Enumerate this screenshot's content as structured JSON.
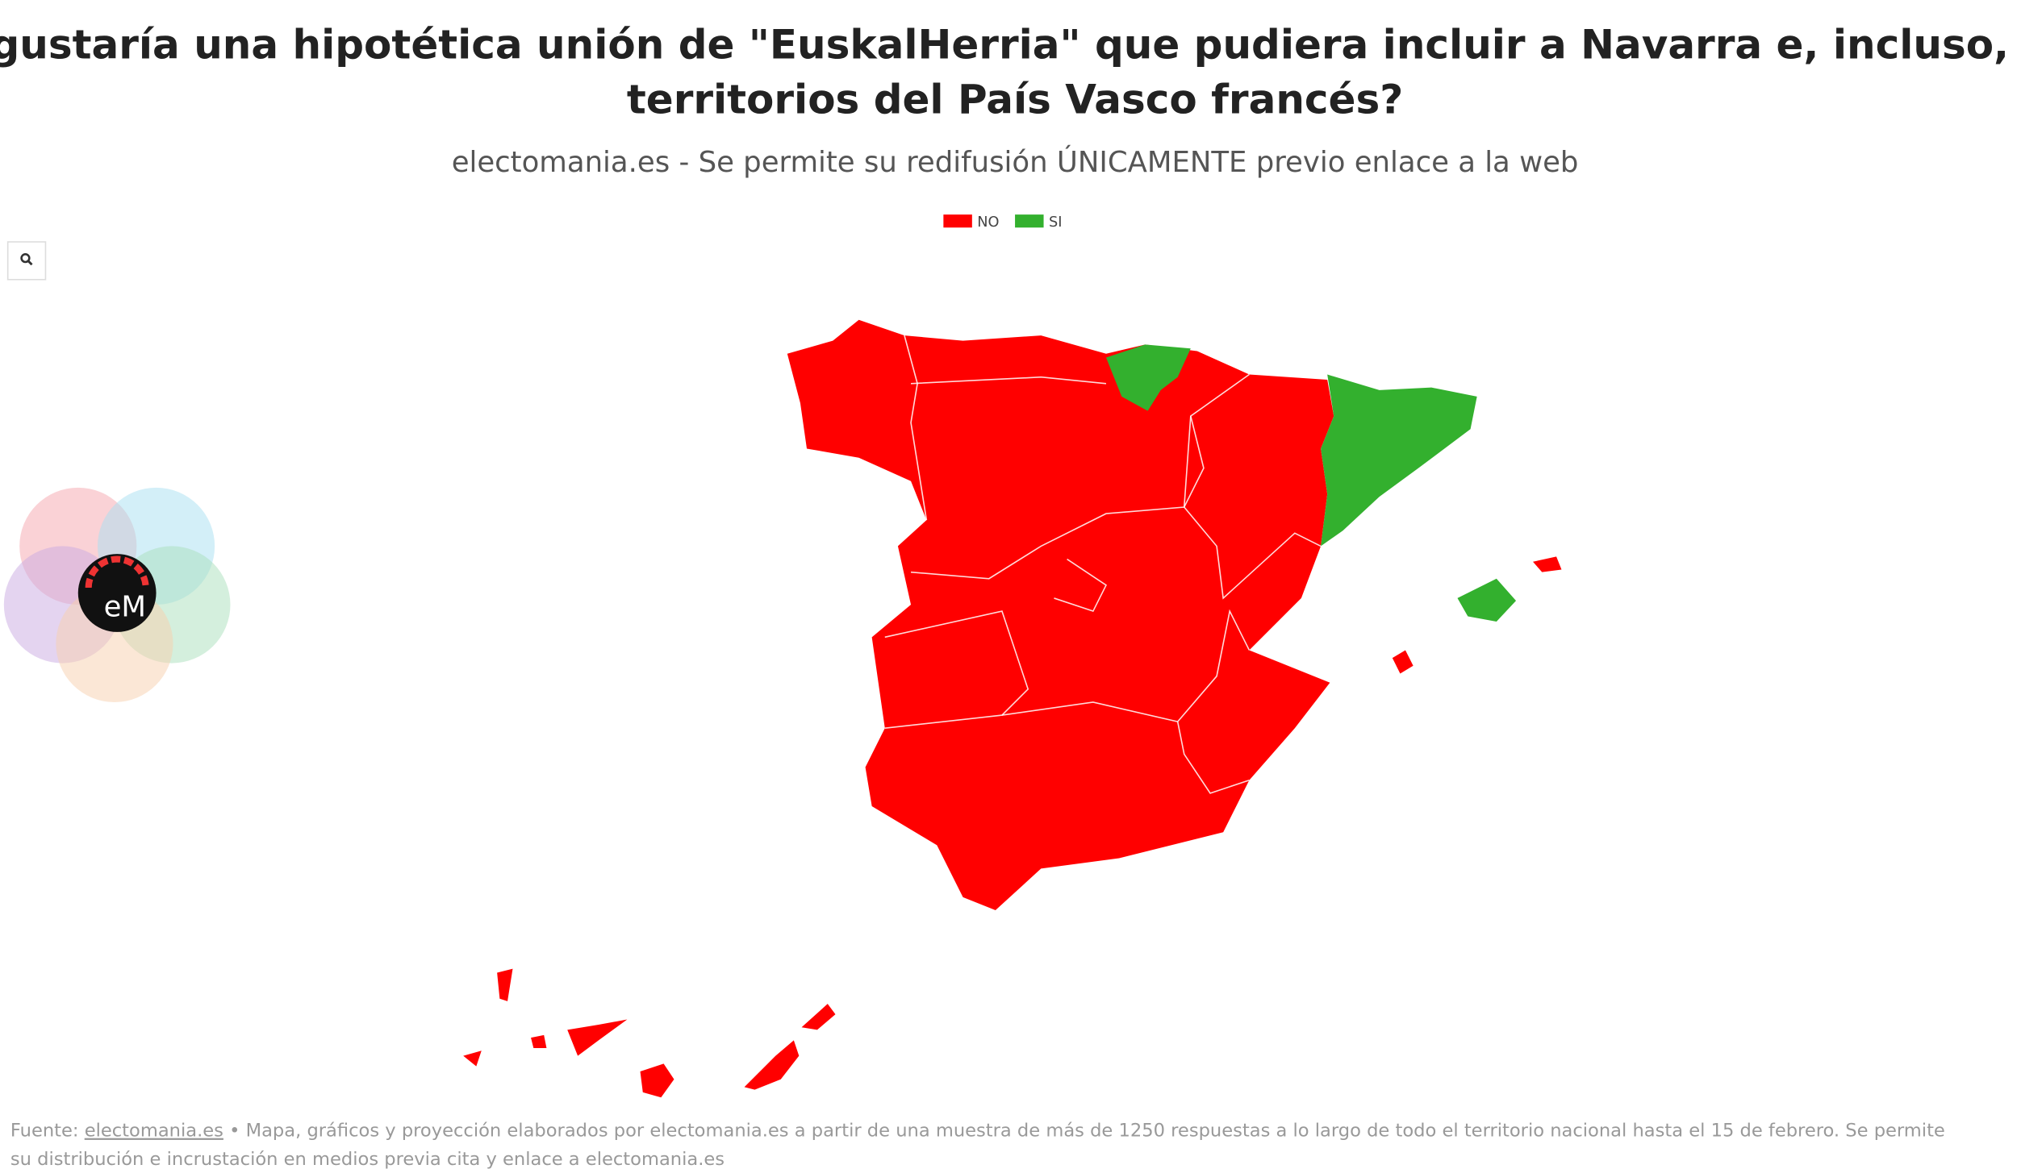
{
  "title_lines": [
    "¿Le gustaría una hipotética unión de \"EuskalHerria\" que pudiera incluir a Navarra e, incluso, a los",
    "territorios del País Vasco francés?"
  ],
  "subtitle": "electomania.es - Se permite su redifusión ÚNICAMENTE previo enlace a la web",
  "legend": [
    {
      "name": "NO",
      "color": "#ff0000"
    },
    {
      "name": "SI",
      "color": "#33b02e"
    }
  ],
  "logo": "eM",
  "footer": {
    "source_label": "Fuente:",
    "source_link": "electomania.es",
    "line1_rest": "• Mapa, gráficos y proyección elaborados por electomania.es a partir de una muestra de más de 1250 respuestas a lo largo de todo el territorio nacional hasta el 15 de febrero. Se permite",
    "line2": "su distribución e incrustación en medios previa cita y enlace a electomania.es"
  }
}
